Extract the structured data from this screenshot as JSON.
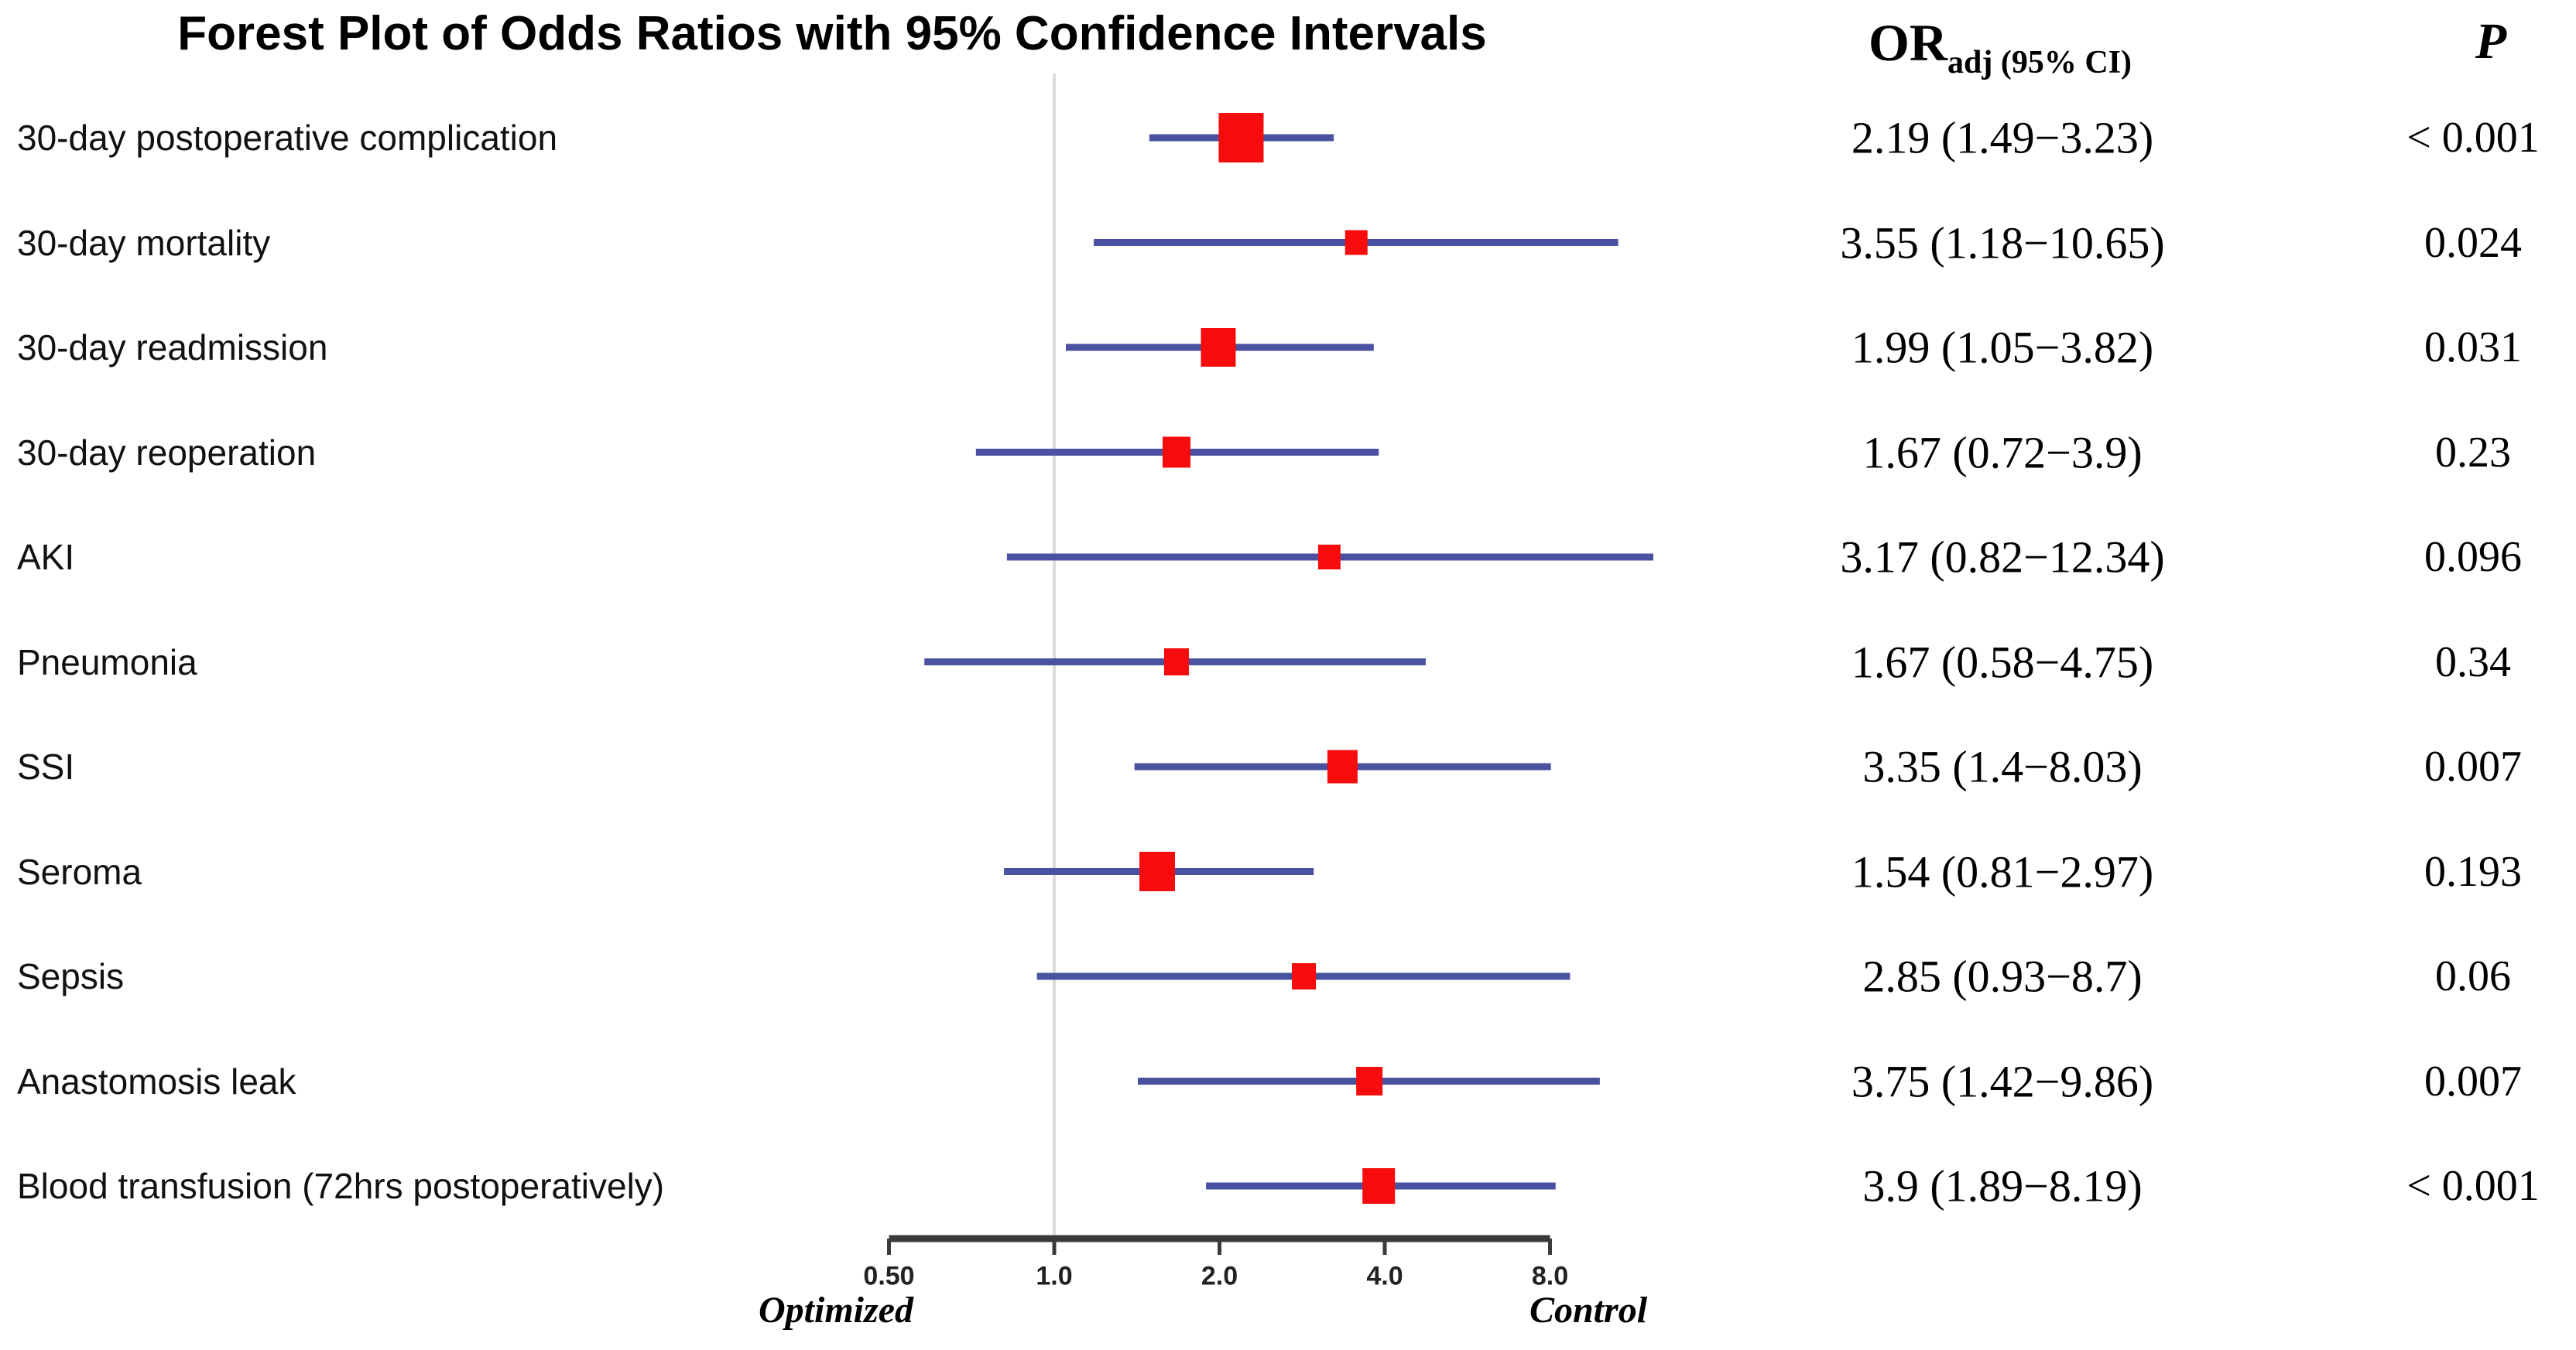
{
  "columns": {
    "or_header_main": "OR",
    "or_header_sub": "adj (95% CI)",
    "p_header": "P"
  },
  "colors": {
    "square": "#F60C0C",
    "ci_line": "#4A51A0",
    "reference_line": "#DCDCDC",
    "axis_line": "#3A3A3A",
    "text": "#000000",
    "background": "#FFFFFF"
  },
  "chart_data": {
    "type": "scatter",
    "subtype": "forest-plot",
    "title": "Forest Plot of Odds Ratios with 95% Confidence Intervals",
    "x_axis": {
      "scale": "log2",
      "min": 0.5,
      "max": 8,
      "reference": 1.0,
      "tick_values": [
        0.5,
        1,
        2,
        4,
        8
      ],
      "tick_labels": [
        "0.50",
        "1.0",
        "2.0",
        "4.0",
        "8.0"
      ],
      "left_label": "Optimized",
      "right_label": "Control"
    },
    "rows": [
      {
        "label": "30-day postoperative complication",
        "or": 2.19,
        "ci_low": 1.49,
        "ci_high": 3.23,
        "or_ci_text": "2.19 (1.49−3.23)",
        "p_text": "< 0.001",
        "square_size": 58
      },
      {
        "label": "30-day mortality",
        "or": 3.55,
        "ci_low": 1.18,
        "ci_high": 10.65,
        "or_ci_text": "3.55 (1.18−10.65)",
        "p_text": "0.024",
        "square_size": 29
      },
      {
        "label": "30-day readmission",
        "or": 1.99,
        "ci_low": 1.05,
        "ci_high": 3.82,
        "or_ci_text": "1.99 (1.05−3.82)",
        "p_text": "0.031",
        "square_size": 45
      },
      {
        "label": "30-day reoperation",
        "or": 1.67,
        "ci_low": 0.72,
        "ci_high": 3.9,
        "or_ci_text": "1.67 (0.72−3.9)",
        "p_text": "0.23",
        "square_size": 36
      },
      {
        "label": "AKI",
        "or": 3.17,
        "ci_low": 0.82,
        "ci_high": 12.34,
        "or_ci_text": "3.17 (0.82−12.34)",
        "p_text": "0.096",
        "square_size": 29
      },
      {
        "label": "Pneumonia",
        "or": 1.67,
        "ci_low": 0.58,
        "ci_high": 4.75,
        "or_ci_text": "1.67 (0.58−4.75)",
        "p_text": "0.34",
        "square_size": 32
      },
      {
        "label": "SSI",
        "or": 3.35,
        "ci_low": 1.4,
        "ci_high": 8.03,
        "or_ci_text": "3.35 (1.4−8.03)",
        "p_text": "0.007",
        "square_size": 39
      },
      {
        "label": "Seroma",
        "or": 1.54,
        "ci_low": 0.81,
        "ci_high": 2.97,
        "or_ci_text": "1.54 (0.81−2.97)",
        "p_text": "0.193",
        "square_size": 46
      },
      {
        "label": "Sepsis",
        "or": 2.85,
        "ci_low": 0.93,
        "ci_high": 8.7,
        "or_ci_text": "2.85 (0.93−8.7)",
        "p_text": "0.06",
        "square_size": 31
      },
      {
        "label": "Anastomosis leak",
        "or": 3.75,
        "ci_low": 1.42,
        "ci_high": 9.86,
        "or_ci_text": "3.75 (1.42−9.86)",
        "p_text": "0.007",
        "square_size": 34
      },
      {
        "label": "Blood transfusion (72hrs postoperatively)",
        "or": 3.9,
        "ci_low": 1.89,
        "ci_high": 8.19,
        "or_ci_text": "3.9 (1.89−8.19)",
        "p_text": "< 0.001",
        "square_size": 42
      }
    ]
  }
}
